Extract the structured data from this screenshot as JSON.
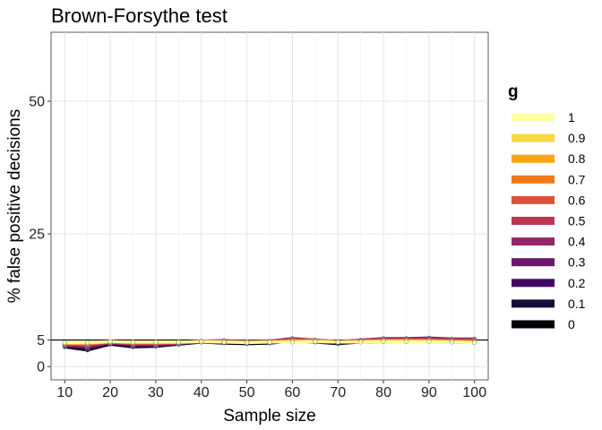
{
  "chart_data": {
    "type": "line",
    "title": "Brown-Forsythe test",
    "xlabel": "Sample size",
    "ylabel": "% false positive decisions",
    "xlim": [
      7,
      103
    ],
    "ylim": [
      -2.5,
      63
    ],
    "x_ticks": [
      10,
      20,
      30,
      40,
      50,
      60,
      70,
      80,
      90,
      100
    ],
    "y_ticks": [
      0,
      5,
      25,
      50
    ],
    "reference_line": 5,
    "grid": true,
    "legend": {
      "title": "g",
      "position": "right"
    },
    "x": [
      10,
      15,
      20,
      25,
      30,
      35,
      40,
      45,
      50,
      55,
      60,
      65,
      70,
      75,
      80,
      85,
      90,
      95,
      100
    ],
    "series": [
      {
        "name": "0",
        "color": "#000004",
        "values": [
          3.7,
          3.1,
          4.2,
          3.7,
          3.8,
          4.2,
          4.6,
          4.4,
          4.3,
          4.4,
          4.8,
          4.6,
          4.3,
          4.6,
          4.7,
          4.7,
          4.8,
          4.6,
          4.5
        ]
      },
      {
        "name": "0.1",
        "color": "#160B39",
        "values": [
          3.8,
          3.3,
          4.3,
          3.8,
          3.9,
          4.2,
          4.6,
          4.5,
          4.4,
          4.5,
          4.9,
          4.7,
          4.4,
          4.7,
          4.9,
          4.9,
          5.0,
          4.8,
          4.7
        ]
      },
      {
        "name": "0.2",
        "color": "#420A68",
        "values": [
          3.9,
          3.5,
          4.4,
          4.0,
          4.0,
          4.3,
          4.7,
          4.8,
          4.6,
          4.7,
          5.1,
          4.9,
          4.6,
          4.9,
          5.1,
          5.1,
          5.2,
          5.0,
          5.0
        ]
      },
      {
        "name": "0.3",
        "color": "#6A176E",
        "values": [
          4.0,
          3.7,
          4.5,
          4.1,
          4.1,
          4.4,
          4.8,
          4.9,
          4.7,
          4.8,
          5.3,
          5.0,
          4.7,
          5.0,
          5.3,
          5.3,
          5.4,
          5.2,
          5.2
        ]
      },
      {
        "name": "0.4",
        "color": "#932667",
        "values": [
          4.1,
          3.9,
          4.5,
          4.2,
          4.2,
          4.4,
          4.8,
          4.8,
          4.7,
          4.8,
          5.2,
          5.0,
          4.7,
          5.0,
          5.2,
          5.2,
          5.3,
          5.1,
          5.1
        ]
      },
      {
        "name": "0.5",
        "color": "#BC3754",
        "values": [
          4.2,
          4.0,
          4.6,
          4.3,
          4.3,
          4.5,
          4.8,
          4.8,
          4.7,
          4.8,
          5.1,
          5.0,
          4.7,
          4.9,
          5.1,
          5.1,
          5.1,
          5.0,
          5.0
        ]
      },
      {
        "name": "0.6",
        "color": "#DD513A",
        "values": [
          4.3,
          4.2,
          4.6,
          4.4,
          4.4,
          4.5,
          4.8,
          4.7,
          4.7,
          4.7,
          5.0,
          4.9,
          4.7,
          4.9,
          5.0,
          5.0,
          5.0,
          4.9,
          4.9
        ]
      },
      {
        "name": "0.7",
        "color": "#F37819",
        "values": [
          4.4,
          4.3,
          4.7,
          4.5,
          4.5,
          4.5,
          4.8,
          4.7,
          4.6,
          4.7,
          4.9,
          4.9,
          4.7,
          4.8,
          4.9,
          4.9,
          4.9,
          4.8,
          4.7
        ]
      },
      {
        "name": "0.8",
        "color": "#FCA50A",
        "values": [
          4.4,
          4.4,
          4.7,
          4.6,
          4.6,
          4.6,
          4.7,
          4.7,
          4.6,
          4.6,
          4.8,
          4.8,
          4.6,
          4.7,
          4.8,
          4.8,
          4.8,
          4.7,
          4.6
        ]
      },
      {
        "name": "0.9",
        "color": "#F6D746",
        "values": [
          4.5,
          4.5,
          4.7,
          4.6,
          4.6,
          4.6,
          4.7,
          4.6,
          4.6,
          4.6,
          4.7,
          4.7,
          4.6,
          4.7,
          4.7,
          4.7,
          4.7,
          4.6,
          4.5
        ]
      },
      {
        "name": "1",
        "color": "#FCFFA4",
        "values": [
          4.5,
          4.5,
          4.7,
          4.6,
          4.6,
          4.6,
          4.7,
          4.6,
          4.5,
          4.6,
          4.6,
          4.7,
          4.6,
          4.6,
          4.7,
          4.7,
          4.7,
          4.6,
          4.5
        ]
      }
    ]
  }
}
